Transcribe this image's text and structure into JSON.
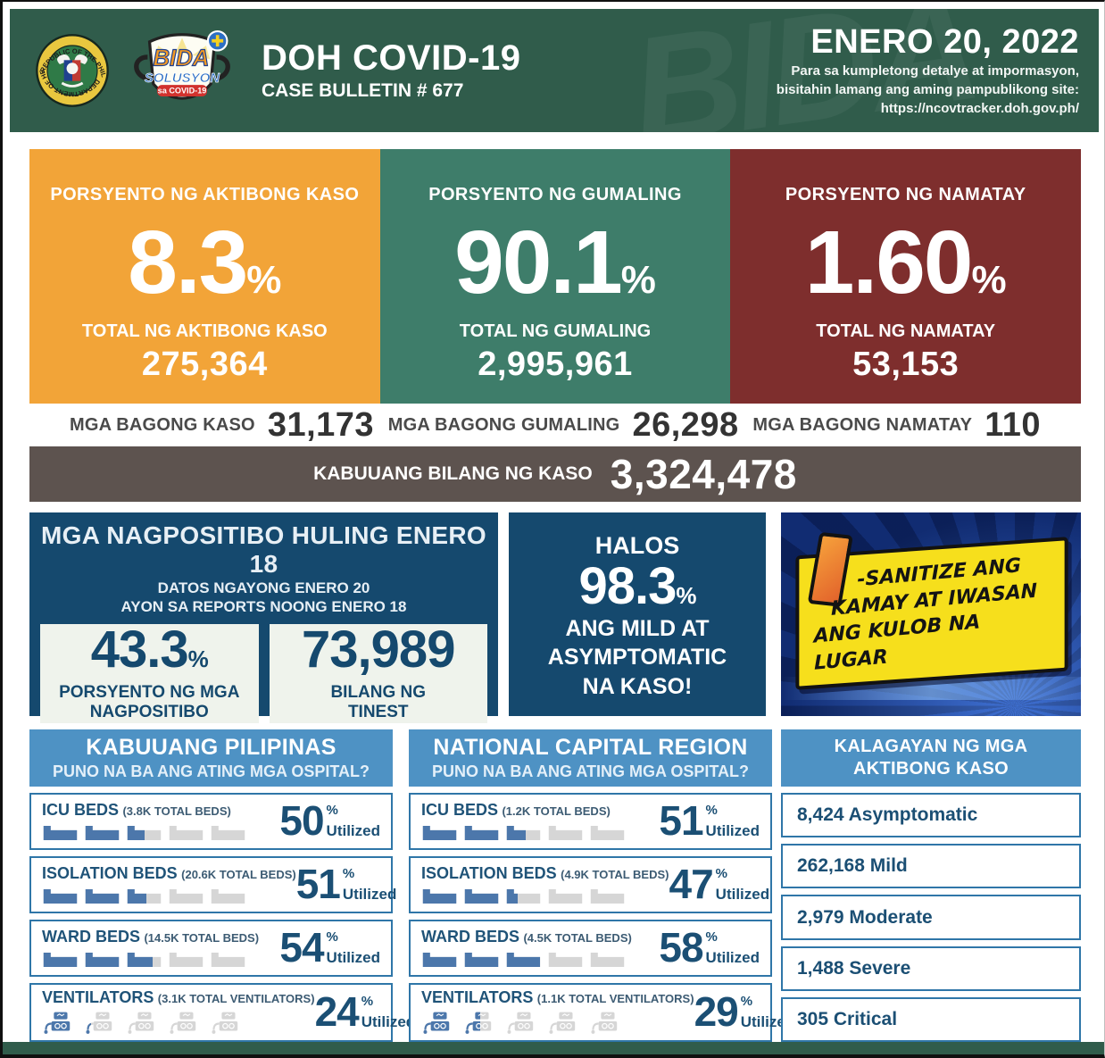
{
  "header": {
    "title": "DOH COVID-19",
    "bulletin": "CASE BULLETIN # 677",
    "date": "ENERO 20, 2022",
    "note1": "Para sa kumpletong detalye at impormasyon,",
    "note2": "bisitahin lamang ang aming pampublikong site:",
    "url": "https://ncovtracker.doh.gov.ph/",
    "watermark": "BIDA",
    "seal_top": "REPUBLIC OF THE PHILIPPINES",
    "seal_bottom": "DEPARTMENT OF HEALTH",
    "bida_top": "BIDA",
    "bida_mid": "SOLUSYON",
    "bida_bottom": "sa COVID-19"
  },
  "colors": {
    "active": "#F2A438",
    "recovered": "#3E7D6A",
    "deaths": "#7E2E2D",
    "total_bar": "#5D534F",
    "panel_blue": "#15496E",
    "section_blue": "#4E92C4",
    "icon_fill": "#4C77AB",
    "icon_empty": "#D6D6D6",
    "header_green": "#305C4B"
  },
  "pct_sign": "%",
  "utilized": "Utilized",
  "stat_cards": [
    {
      "label": "PORSYENTO NG AKTIBONG KASO",
      "percent": "8.3",
      "total_label": "TOTAL NG AKTIBONG KASO",
      "total": "275,364"
    },
    {
      "label": "PORSYENTO NG GUMALING",
      "percent": "90.1",
      "total_label": "TOTAL NG GUMALING",
      "total": "2,995,961"
    },
    {
      "label": "PORSYENTO NG NAMATAY",
      "percent": "1.60",
      "total_label": "TOTAL NG NAMATAY",
      "total": "53,153"
    }
  ],
  "new_cases": [
    {
      "label": "MGA BAGONG KASO",
      "value": "31,173"
    },
    {
      "label": "MGA BAGONG GUMALING",
      "value": "26,298"
    },
    {
      "label": "MGA BAGONG NAMATAY",
      "value": "110"
    }
  ],
  "total_bar": {
    "label": "KABUUANG BILANG NG KASO",
    "value": "3,324,478"
  },
  "positives_panel": {
    "title": "MGA NAGPOSITIBO HULING ENERO 18",
    "sub1": "DATOS NGAYONG ENERO 20",
    "sub2": "AYON SA REPORTS NOONG ENERO 18",
    "rate": {
      "value": "43.3",
      "label1": "PORSYENTO NG MGA",
      "label2": "NAGPOSITIBO"
    },
    "tested": {
      "value": "73,989",
      "label1": "BILANG NG",
      "label2": "TINEST"
    }
  },
  "mild_panel": {
    "top": "HALOS",
    "value": "98.3",
    "l1": "ANG MILD AT",
    "l2": "ASYMPTOMATIC",
    "l3": "NA KASO!"
  },
  "reminder": {
    "l1": "-SANITIZE ANG",
    "l2": "KAMAY AT IWASAN",
    "l3": "ANG KULOB NA LUGAR"
  },
  "hospitals": {
    "philippines": {
      "title": "KABUUANG PILIPINAS",
      "subtitle": "PUNO NA BA ANG ATING MGA OSPITAL?",
      "rows": [
        {
          "name": "ICU BEDS",
          "capacity": "(3.8K TOTAL BEDS)",
          "percent": 50,
          "icon": "bed"
        },
        {
          "name": "ISOLATION BEDS",
          "capacity": "(20.6K TOTAL BEDS)",
          "percent": 51,
          "icon": "bed"
        },
        {
          "name": "WARD BEDS",
          "capacity": "(14.5K TOTAL BEDS)",
          "percent": 54,
          "icon": "bed"
        },
        {
          "name": "VENTILATORS",
          "capacity": "(3.1K TOTAL VENTILATORS)",
          "percent": 24,
          "icon": "ventilator"
        }
      ]
    },
    "ncr": {
      "title": "NATIONAL CAPITAL REGION",
      "subtitle": "PUNO NA BA ANG ATING MGA OSPITAL?",
      "rows": [
        {
          "name": "ICU BEDS",
          "capacity": "(1.2K TOTAL BEDS)",
          "percent": 51,
          "icon": "bed"
        },
        {
          "name": "ISOLATION BEDS",
          "capacity": "(4.9K TOTAL BEDS)",
          "percent": 47,
          "icon": "bed"
        },
        {
          "name": "WARD BEDS",
          "capacity": "(4.5K TOTAL BEDS)",
          "percent": 58,
          "icon": "bed"
        },
        {
          "name": "VENTILATORS",
          "capacity": "(1.1K TOTAL VENTILATORS)",
          "percent": 29,
          "icon": "ventilator"
        }
      ]
    }
  },
  "active_status": {
    "title1": "KALAGAYAN NG MGA",
    "title2": "AKTIBONG KASO",
    "items": [
      {
        "text": "8,424 Asymptomatic"
      },
      {
        "text": "262,168 Mild"
      },
      {
        "text": "2,979 Moderate"
      },
      {
        "text": "1,488 Severe"
      },
      {
        "text": "305 Critical"
      }
    ]
  }
}
